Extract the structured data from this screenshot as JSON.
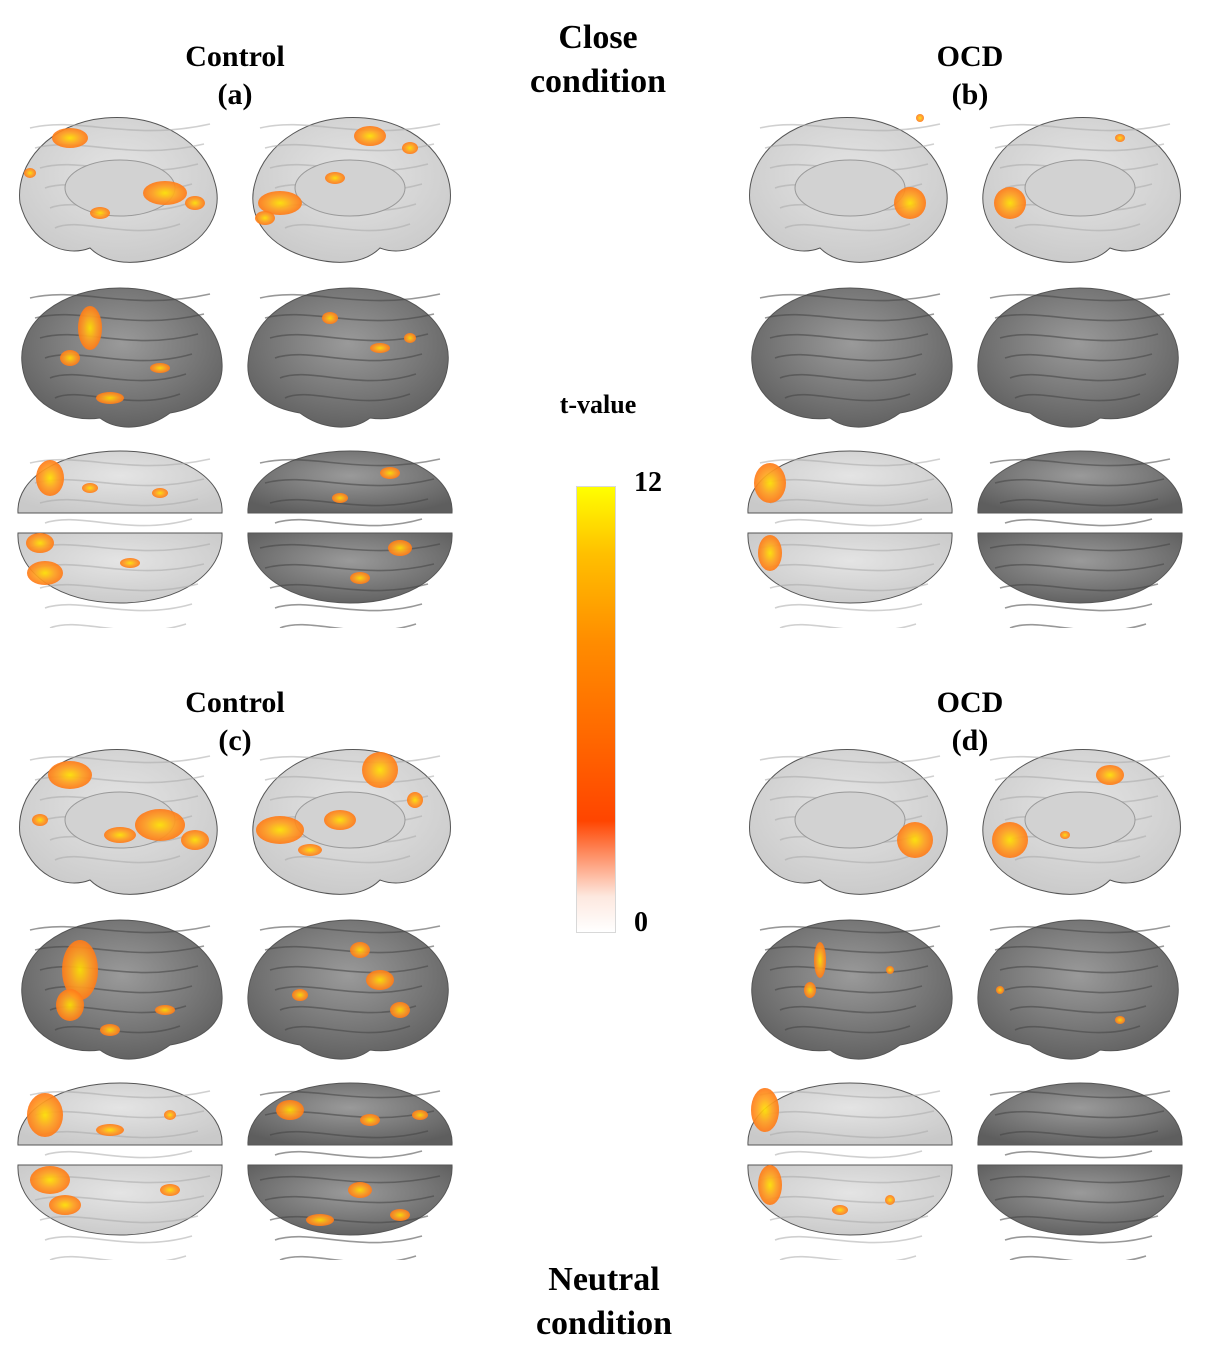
{
  "top_condition": "Close\ncondition",
  "bottom_condition": "Neutral\ncondition",
  "panels": [
    {
      "group": "Control",
      "letter": "(a)"
    },
    {
      "group": "OCD",
      "letter": "(b)"
    },
    {
      "group": "Control",
      "letter": "(c)"
    },
    {
      "group": "OCD",
      "letter": "(d)"
    }
  ],
  "colorbar": {
    "label": "t-value",
    "max_label": "12",
    "min_label": "0",
    "range": [
      0,
      12
    ],
    "colors": [
      "#ffffff",
      "#ff4500",
      "#ff8c00",
      "#ffff00"
    ]
  },
  "colors": {
    "medial_surface": "#c9c9c9",
    "lateral_surface": "#7a7a7a",
    "activation_low": "#ff7a1a",
    "activation_high": "#ffe000"
  }
}
